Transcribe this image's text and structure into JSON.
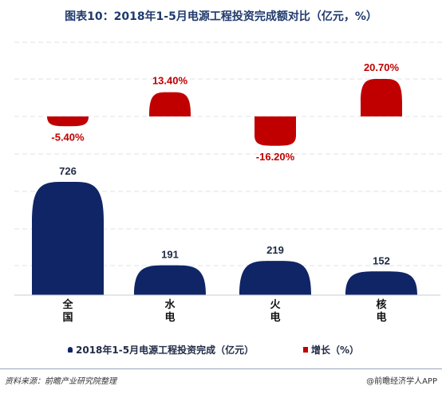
{
  "title": "图表10：2018年1-5月电源工程投资完成额对比（亿元，%）",
  "chart_data": {
    "type": "bar",
    "categories": [
      "全国",
      "水电",
      "火电",
      "核电"
    ],
    "series": [
      {
        "name": "2018年1-5月电源工程投资完成（亿元）",
        "values": [
          726,
          191,
          219,
          152
        ],
        "labels": [
          "726",
          "191",
          "219",
          "152"
        ],
        "color": "#0f2566"
      },
      {
        "name": "增长（%）",
        "values": [
          -5.4,
          13.4,
          -16.2,
          20.7
        ],
        "labels": [
          "-5.40%",
          "13.40%",
          "-16.20%",
          "20.70%"
        ],
        "color": "#c00000"
      }
    ],
    "grid": true,
    "legend": "bottom"
  },
  "footer": {
    "source": "资料来源：前瞻产业研究院整理",
    "brand": "@前瞻经济学人APP"
  },
  "watermark": "前瞻产业研究院"
}
